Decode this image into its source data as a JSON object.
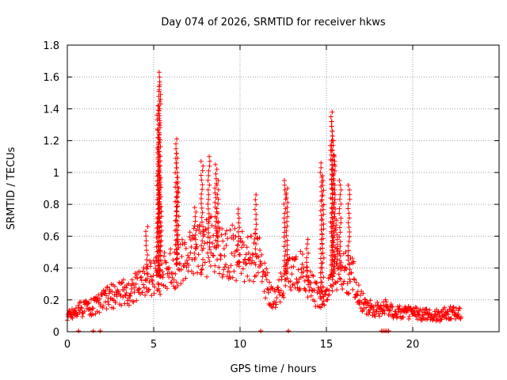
{
  "chart_data": {
    "type": "scatter",
    "title": "Day 074 of 2026, SRMTID for receiver hkws",
    "xlabel": "GPS time / hours",
    "ylabel": "SRMTID / TECUs",
    "xlim": [
      0,
      25
    ],
    "ylim": [
      0,
      1.8
    ],
    "xticks": [
      0,
      5,
      10,
      15,
      20
    ],
    "yticks": [
      0,
      0.2,
      0.4,
      0.6,
      0.8,
      1,
      1.2,
      1.4,
      1.6,
      1.8
    ],
    "grid": true,
    "marker": "+",
    "color": "#ff0000",
    "anchors": [
      [
        0.0,
        0.1
      ],
      [
        0.5,
        0.13
      ],
      [
        1.0,
        0.15
      ],
      [
        1.5,
        0.16
      ],
      [
        2.0,
        0.19
      ],
      [
        2.5,
        0.22
      ],
      [
        3.0,
        0.24
      ],
      [
        3.5,
        0.25
      ],
      [
        4.0,
        0.28
      ],
      [
        4.5,
        0.33
      ],
      [
        5.0,
        0.35
      ],
      [
        5.5,
        0.36
      ],
      [
        6.0,
        0.4
      ],
      [
        6.5,
        0.44
      ],
      [
        7.0,
        0.46
      ],
      [
        7.5,
        0.5
      ],
      [
        8.0,
        0.52
      ],
      [
        8.5,
        0.55
      ],
      [
        9.0,
        0.52
      ],
      [
        9.5,
        0.5
      ],
      [
        10.0,
        0.48
      ],
      [
        10.5,
        0.45
      ],
      [
        11.0,
        0.5
      ],
      [
        11.5,
        0.3
      ],
      [
        12.0,
        0.2
      ],
      [
        12.5,
        0.32
      ],
      [
        13.0,
        0.36
      ],
      [
        13.5,
        0.4
      ],
      [
        14.0,
        0.3
      ],
      [
        14.5,
        0.22
      ],
      [
        15.0,
        0.22
      ],
      [
        15.5,
        0.4
      ],
      [
        16.0,
        0.38
      ],
      [
        16.5,
        0.35
      ],
      [
        17.0,
        0.2
      ],
      [
        17.5,
        0.15
      ],
      [
        18.0,
        0.14
      ],
      [
        18.5,
        0.16
      ],
      [
        19.0,
        0.12
      ],
      [
        19.5,
        0.12
      ],
      [
        20.0,
        0.12
      ],
      [
        20.5,
        0.11
      ],
      [
        21.0,
        0.1
      ],
      [
        21.5,
        0.1
      ],
      [
        22.0,
        0.12
      ],
      [
        22.5,
        0.12
      ],
      [
        22.8,
        0.12
      ]
    ],
    "spikes": [
      {
        "x": 5.3,
        "y": 1.63
      },
      {
        "x": 5.35,
        "y": 1.55
      },
      {
        "x": 5.25,
        "y": 1.42
      },
      {
        "x": 5.3,
        "y": 1.22
      },
      {
        "x": 5.4,
        "y": 1.0
      },
      {
        "x": 5.2,
        "y": 0.8
      },
      {
        "x": 6.3,
        "y": 1.21
      },
      {
        "x": 6.35,
        "y": 1.12
      },
      {
        "x": 6.4,
        "y": 0.93
      },
      {
        "x": 7.8,
        "y": 1.07
      },
      {
        "x": 8.2,
        "y": 1.1
      },
      {
        "x": 8.6,
        "y": 1.05
      },
      {
        "x": 8.7,
        "y": 0.95
      },
      {
        "x": 7.4,
        "y": 0.78
      },
      {
        "x": 9.9,
        "y": 0.77
      },
      {
        "x": 10.9,
        "y": 0.86
      },
      {
        "x": 12.6,
        "y": 0.95
      },
      {
        "x": 12.7,
        "y": 0.9
      },
      {
        "x": 14.7,
        "y": 1.06
      },
      {
        "x": 14.8,
        "y": 0.98
      },
      {
        "x": 15.3,
        "y": 1.38
      },
      {
        "x": 15.35,
        "y": 1.32
      },
      {
        "x": 15.4,
        "y": 1.2
      },
      {
        "x": 15.45,
        "y": 1.1
      },
      {
        "x": 15.8,
        "y": 0.95
      },
      {
        "x": 16.3,
        "y": 0.92
      },
      {
        "x": 15.6,
        "y": 0.7
      },
      {
        "x": 4.6,
        "y": 0.66
      },
      {
        "x": 13.9,
        "y": 0.58
      }
    ],
    "zero_points": [
      0.65,
      1.5,
      1.9,
      11.2,
      12.8,
      18.2,
      18.3,
      18.4,
      18.5,
      18.6
    ]
  }
}
